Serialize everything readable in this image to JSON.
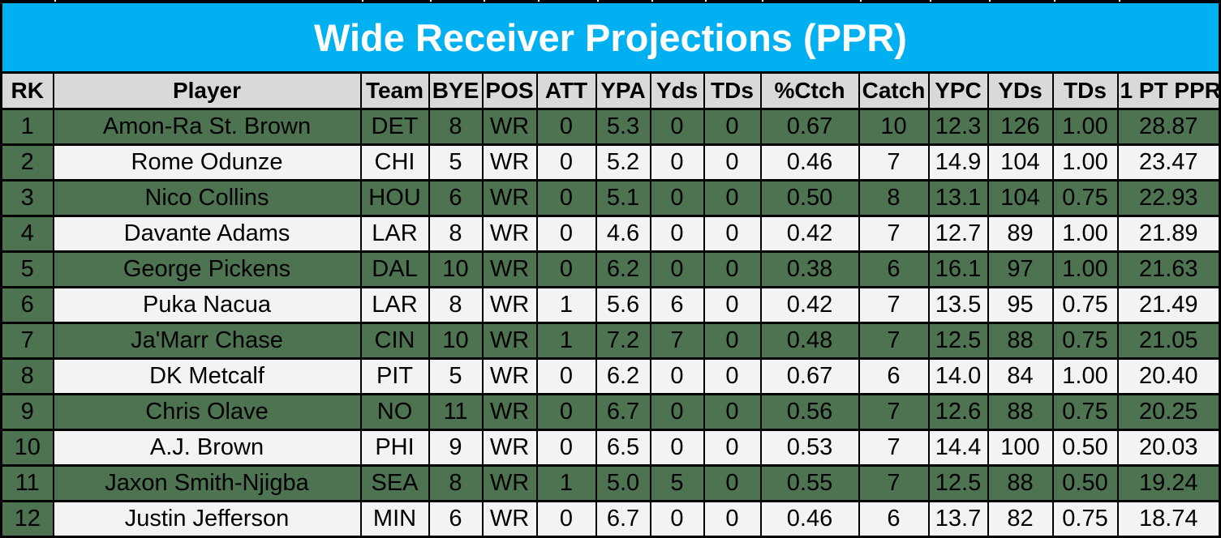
{
  "title": "Wide Receiver Projections (PPR)",
  "chart_data": {
    "type": "table",
    "columns": [
      "RK",
      "Player",
      "Team",
      "BYE",
      "POS",
      "ATT",
      "YPA",
      "Yds",
      "TDs",
      "%Ctch",
      "Catch",
      "YPC",
      "YDs",
      "TDs",
      "1 PT PPR"
    ],
    "rows": [
      [
        "1",
        "Amon-Ra St. Brown",
        "DET",
        "8",
        "WR",
        "0",
        "5.3",
        "0",
        "0",
        "0.67",
        "10",
        "12.3",
        "126",
        "1.00",
        "28.87"
      ],
      [
        "2",
        "Rome Odunze",
        "CHI",
        "5",
        "WR",
        "0",
        "5.2",
        "0",
        "0",
        "0.46",
        "7",
        "14.9",
        "104",
        "1.00",
        "23.47"
      ],
      [
        "3",
        "Nico Collins",
        "HOU",
        "6",
        "WR",
        "0",
        "5.1",
        "0",
        "0",
        "0.50",
        "8",
        "13.1",
        "104",
        "0.75",
        "22.93"
      ],
      [
        "4",
        "Davante Adams",
        "LAR",
        "8",
        "WR",
        "0",
        "4.6",
        "0",
        "0",
        "0.42",
        "7",
        "12.7",
        "89",
        "1.00",
        "21.89"
      ],
      [
        "5",
        "George Pickens",
        "DAL",
        "10",
        "WR",
        "0",
        "6.2",
        "0",
        "0",
        "0.38",
        "6",
        "16.1",
        "97",
        "1.00",
        "21.63"
      ],
      [
        "6",
        "Puka Nacua",
        "LAR",
        "8",
        "WR",
        "1",
        "5.6",
        "6",
        "0",
        "0.42",
        "7",
        "13.5",
        "95",
        "0.75",
        "21.49"
      ],
      [
        "7",
        "Ja'Marr Chase",
        "CIN",
        "10",
        "WR",
        "1",
        "7.2",
        "7",
        "0",
        "0.48",
        "7",
        "12.5",
        "88",
        "0.75",
        "21.05"
      ],
      [
        "8",
        "DK Metcalf",
        "PIT",
        "5",
        "WR",
        "0",
        "6.2",
        "0",
        "0",
        "0.67",
        "6",
        "14.0",
        "84",
        "1.00",
        "20.40"
      ],
      [
        "9",
        "Chris Olave",
        "NO",
        "11",
        "WR",
        "0",
        "6.7",
        "0",
        "0",
        "0.56",
        "7",
        "12.6",
        "88",
        "0.75",
        "20.25"
      ],
      [
        "10",
        "A.J. Brown",
        "PHI",
        "9",
        "WR",
        "0",
        "6.5",
        "0",
        "0",
        "0.53",
        "7",
        "14.4",
        "100",
        "0.50",
        "20.03"
      ],
      [
        "11",
        "Jaxon Smith-Njigba",
        "SEA",
        "8",
        "WR",
        "1",
        "5.0",
        "5",
        "0",
        "0.55",
        "7",
        "12.5",
        "88",
        "0.50",
        "19.24"
      ],
      [
        "12",
        "Justin Jefferson",
        "MIN",
        "6",
        "WR",
        "0",
        "6.7",
        "0",
        "0",
        "0.46",
        "6",
        "13.7",
        "82",
        "0.75",
        "18.74"
      ]
    ],
    "title": "Wide Receiver Projections (PPR)",
    "layout": {
      "zebra": "odd ranks green, even ranks white, rank column always green",
      "legend_position": "none",
      "grid": "on"
    }
  },
  "colors": {
    "title_bg": "#00B0F0",
    "title_text": "#FFFFFF",
    "header_bg": "#D9D9D9",
    "row_green": "#4D7351",
    "row_white": "#F3F3F3",
    "border": "#000000"
  }
}
